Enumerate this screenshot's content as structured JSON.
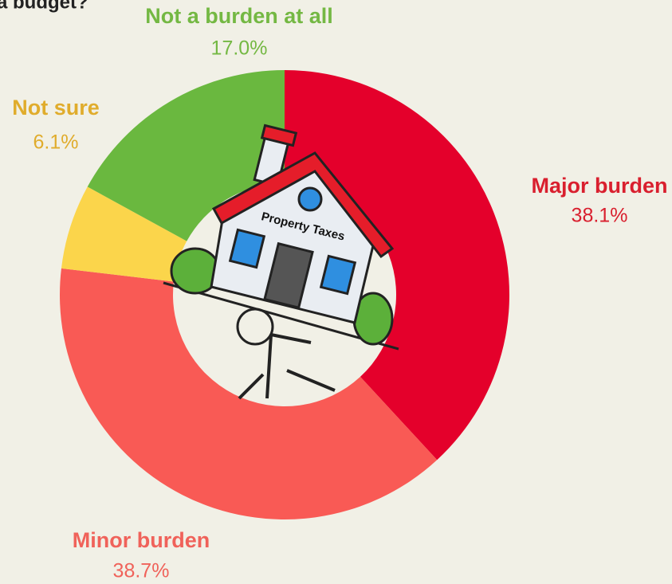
{
  "chart_data": {
    "type": "donut",
    "title": "a budget?",
    "center_label": "Property Taxes",
    "categories": [
      "Major burden",
      "Minor burden",
      "Not sure",
      "Not a burden at all"
    ],
    "values": [
      38.1,
      38.7,
      6.1,
      17.0
    ],
    "value_labels": [
      "38.1%",
      "38.7%",
      "6.1%",
      "17.0%"
    ],
    "colors": [
      "#e4002b",
      "#f95a55",
      "#fbd54b",
      "#6ab83f"
    ],
    "label_colors": [
      "#d91f2e",
      "#f0625a",
      "#e0ac2c",
      "#74b843"
    ]
  }
}
